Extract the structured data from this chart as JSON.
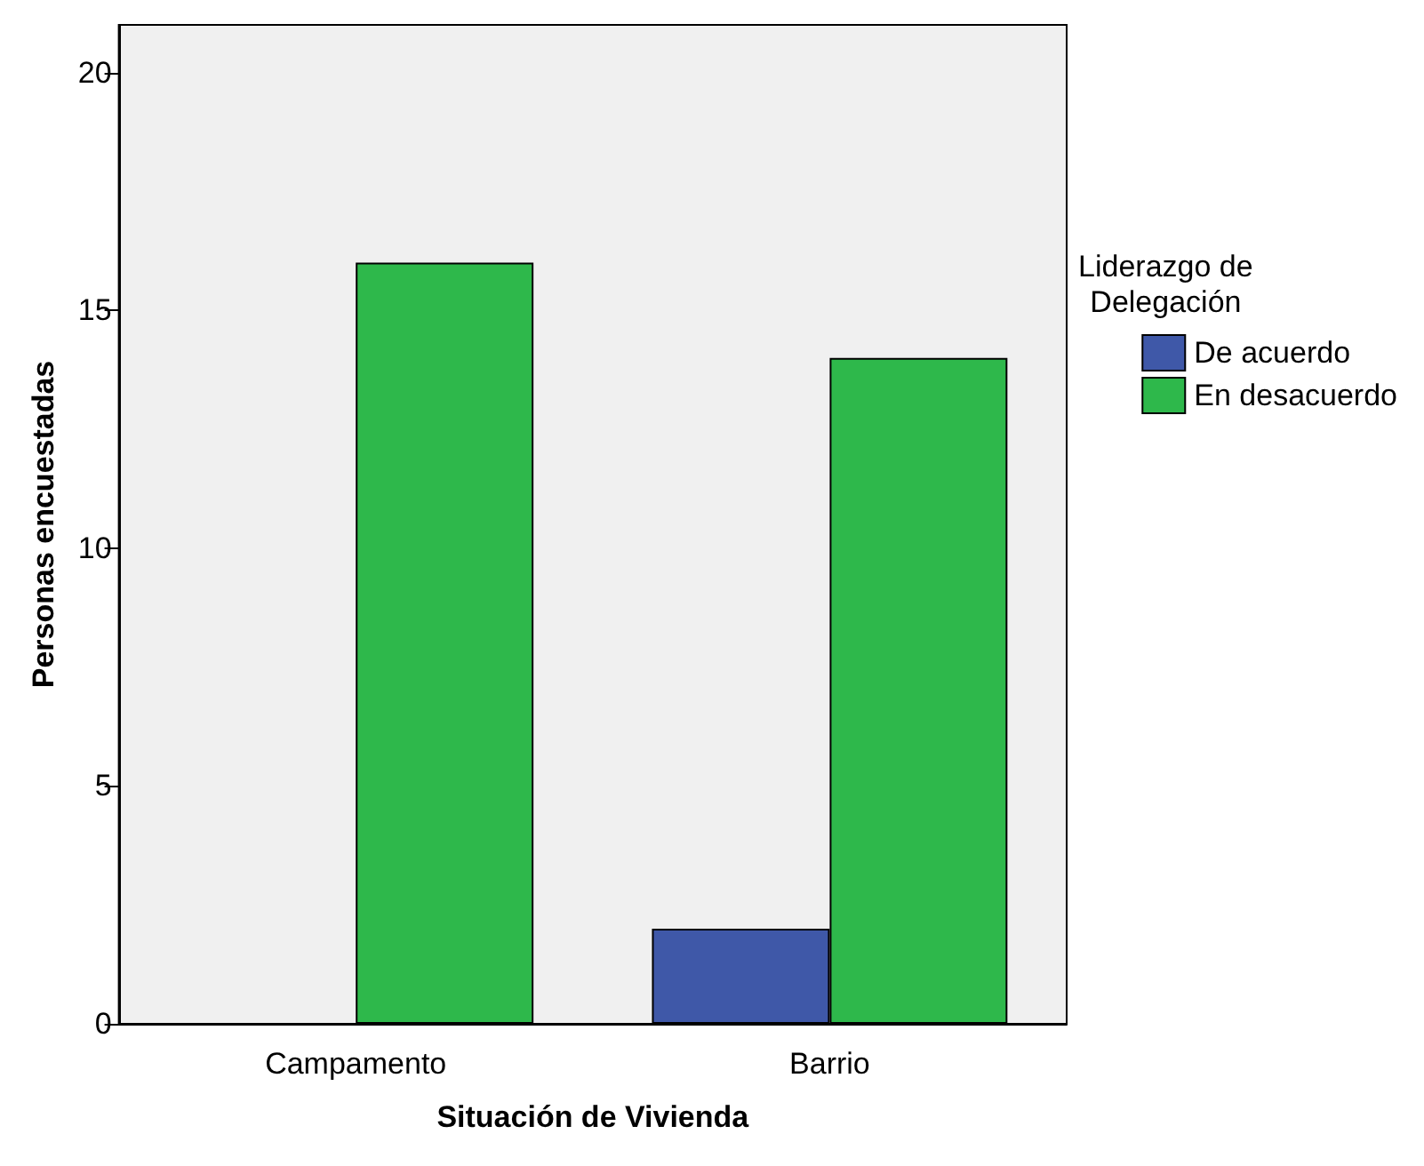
{
  "chart_data": {
    "type": "bar",
    "xlabel": "Situación de Vivienda",
    "ylabel": "Personas encuestadas",
    "legend_title": "Liderazgo de\nDelegación",
    "categories": [
      "Campamento",
      "Barrio"
    ],
    "series": [
      {
        "name": "De acuerdo",
        "color": "#3f58a8",
        "values": [
          0,
          2
        ]
      },
      {
        "name": "En desacuerdo",
        "color": "#2eb84b",
        "values": [
          16,
          14
        ]
      }
    ],
    "ylim": [
      0,
      21
    ],
    "yticks": [
      0,
      5,
      10,
      15,
      20
    ],
    "grid": false,
    "legend": "right"
  }
}
